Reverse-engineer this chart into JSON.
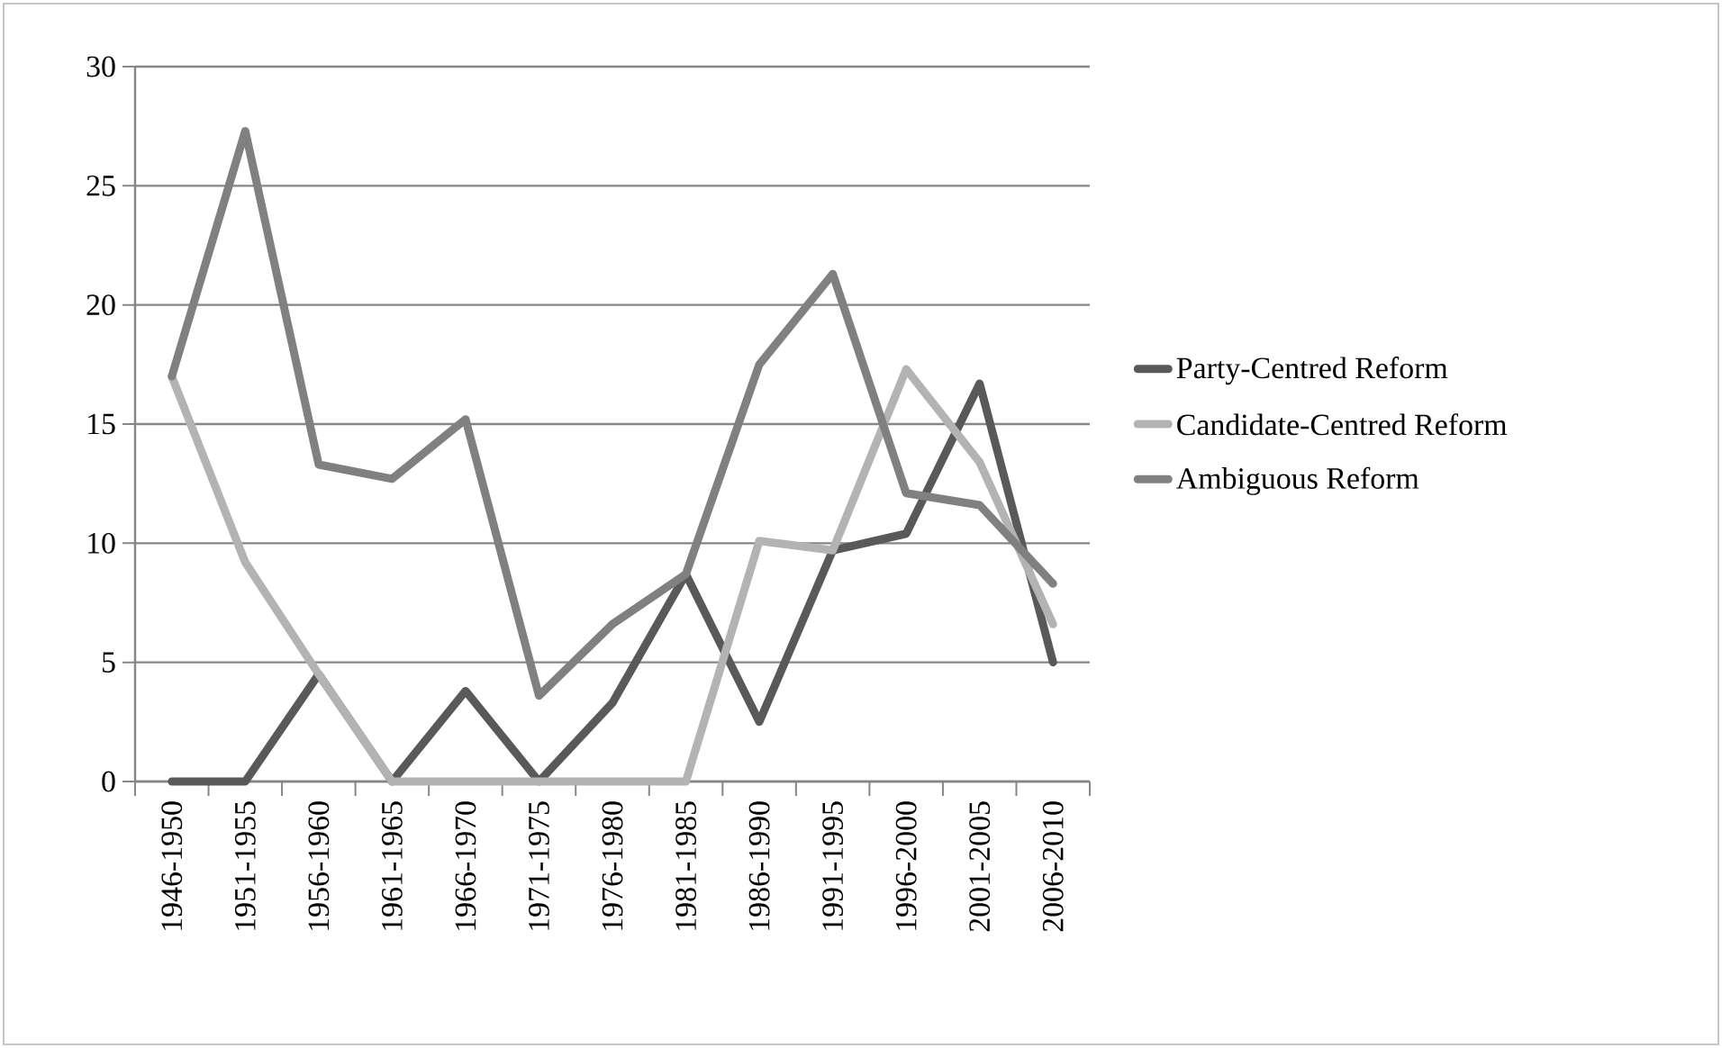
{
  "chart_data": {
    "type": "line",
    "categories": [
      "1946-1950",
      "1951-1955",
      "1956-1960",
      "1961-1965",
      "1966-1970",
      "1971-1975",
      "1976-1980",
      "1981-1985",
      "1986-1990",
      "1991-1995",
      "1996-2000",
      "2001-2005",
      "2006-2010"
    ],
    "series": [
      {
        "name": "Party-Centred Reform",
        "color": "#595959",
        "values": [
          0,
          0,
          4.5,
          0,
          3.8,
          0,
          3.3,
          8.7,
          2.5,
          9.7,
          10.4,
          16.7,
          5.0
        ]
      },
      {
        "name": "Candidate-Centred Reform",
        "color": "#b3b3b3",
        "values": [
          17,
          9.2,
          4.5,
          0,
          0,
          0,
          0,
          0,
          10.1,
          9.7,
          17.3,
          13.4,
          6.6
        ]
      },
      {
        "name": "Ambiguous Reform",
        "color": "#808080",
        "values": [
          17,
          27.3,
          13.3,
          12.7,
          15.2,
          3.6,
          6.6,
          8.7,
          17.5,
          21.3,
          12.1,
          11.6,
          8.3
        ]
      }
    ],
    "ylim": [
      0,
      30
    ],
    "yticks": [
      0,
      5,
      10,
      15,
      20,
      25,
      30
    ],
    "grid": "y",
    "legend": "right",
    "marker": "none",
    "line_style": "solid"
  }
}
